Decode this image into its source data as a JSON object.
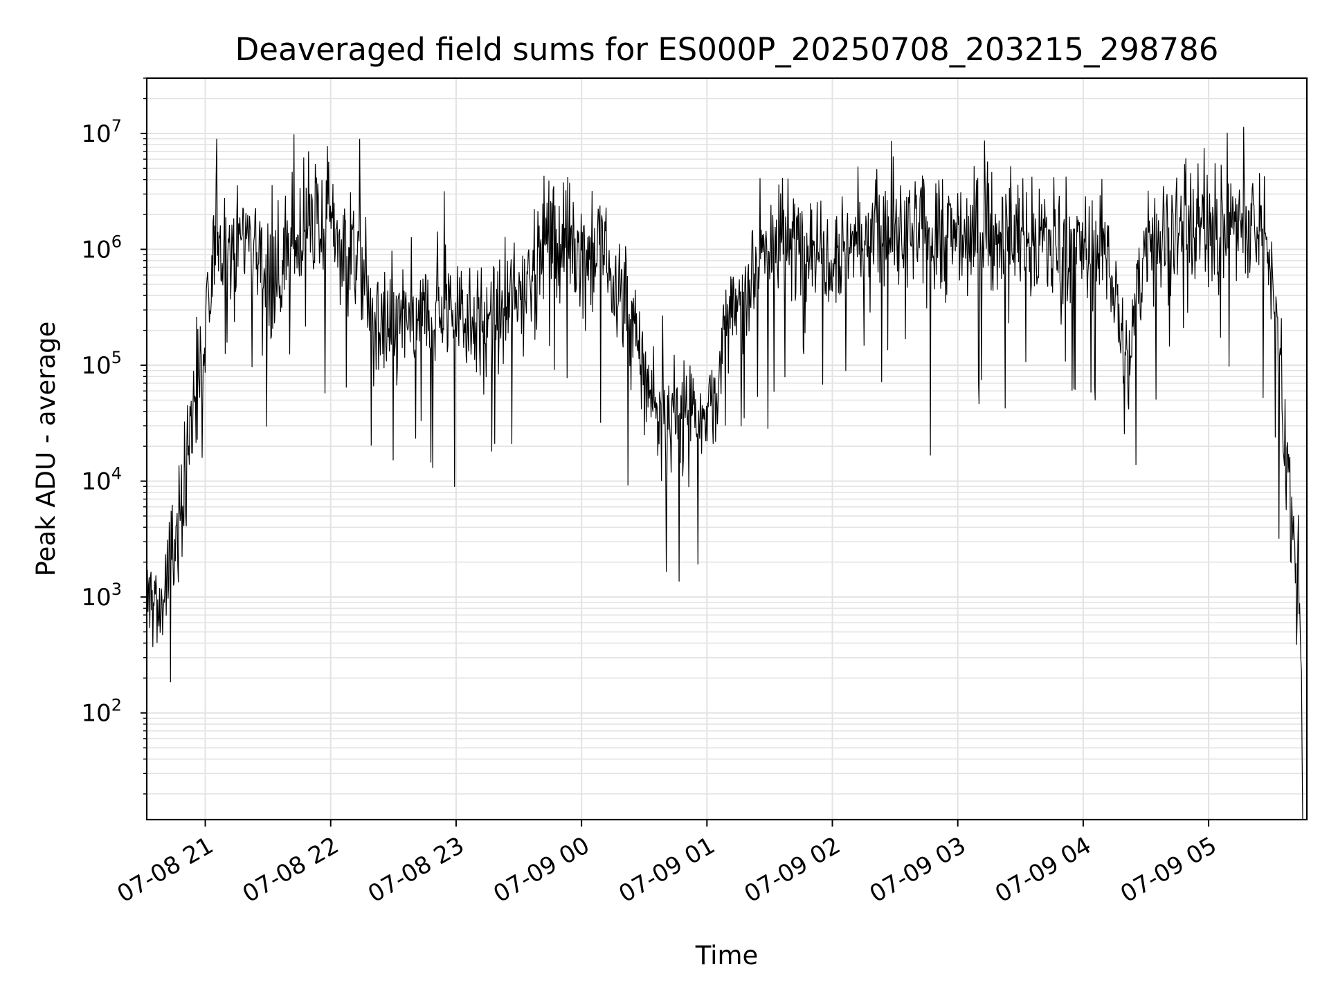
{
  "chart_data": {
    "type": "line",
    "title": "Deaveraged field sums for ES000P_20250708_203215_298786",
    "xlabel": "Time",
    "ylabel": "Peak ADU - average",
    "yscale": "log",
    "grid": true,
    "legend": "none",
    "xlim": [
      "07-08 20:32",
      "07-09 05:47"
    ],
    "ylim": [
      12,
      30000000
    ],
    "x_ticks": [
      "07-08 21",
      "07-08 22",
      "07-08 23",
      "07-09 00",
      "07-09 01",
      "07-09 02",
      "07-09 03",
      "07-09 04",
      "07-09 05"
    ],
    "y_ticks": [
      {
        "value": 100,
        "base": "10",
        "exp": "2"
      },
      {
        "value": 1000,
        "base": "10",
        "exp": "3"
      },
      {
        "value": 10000,
        "base": "10",
        "exp": "4"
      },
      {
        "value": 100000,
        "base": "10",
        "exp": "5"
      },
      {
        "value": 1000000,
        "base": "10",
        "exp": "6"
      },
      {
        "value": 10000000,
        "base": "10",
        "exp": "7"
      }
    ],
    "line_color": "#000000",
    "series": [
      {
        "x": [
          "07-08 20:32",
          "07-08 20:35",
          "07-08 20:38",
          "07-08 20:41",
          "07-08 20:44",
          "07-08 20:47",
          "07-08 20:50",
          "07-08 20:53",
          "07-08 20:56",
          "07-08 20:59",
          "07-08 21:02",
          "07-08 21:05",
          "07-08 21:10",
          "07-08 21:15",
          "07-08 21:20",
          "07-08 21:25",
          "07-08 21:30",
          "07-08 21:35",
          "07-08 21:40",
          "07-08 21:45",
          "07-08 21:50",
          "07-08 21:55",
          "07-08 22:00",
          "07-08 22:05",
          "07-08 22:10",
          "07-08 22:15",
          "07-08 22:20",
          "07-08 22:25",
          "07-08 22:30",
          "07-08 22:35",
          "07-08 22:40",
          "07-08 22:45",
          "07-08 22:50",
          "07-08 22:55",
          "07-08 23:00",
          "07-08 23:05",
          "07-08 23:10",
          "07-08 23:15",
          "07-08 23:20",
          "07-08 23:25",
          "07-08 23:30",
          "07-08 23:35",
          "07-08 23:40",
          "07-08 23:45",
          "07-08 23:50",
          "07-08 23:55",
          "07-09 00:00",
          "07-09 00:05",
          "07-09 00:10",
          "07-09 00:15",
          "07-09 00:20",
          "07-09 00:25",
          "07-09 00:30",
          "07-09 00:35",
          "07-09 00:40",
          "07-09 00:45",
          "07-09 00:50",
          "07-09 00:55",
          "07-09 01:00",
          "07-09 01:05",
          "07-09 01:10",
          "07-09 01:15",
          "07-09 01:20",
          "07-09 01:25",
          "07-09 01:30",
          "07-09 01:35",
          "07-09 01:40",
          "07-09 01:45",
          "07-09 01:50",
          "07-09 01:55",
          "07-09 02:00",
          "07-09 02:10",
          "07-09 02:20",
          "07-09 02:30",
          "07-09 02:40",
          "07-09 02:50",
          "07-09 03:00",
          "07-09 03:10",
          "07-09 03:20",
          "07-09 03:30",
          "07-09 03:40",
          "07-09 03:50",
          "07-09 04:00",
          "07-09 04:10",
          "07-09 04:15",
          "07-09 04:18",
          "07-09 04:22",
          "07-09 04:25",
          "07-09 04:30",
          "07-09 04:40",
          "07-09 04:50",
          "07-09 05:00",
          "07-09 05:10",
          "07-09 05:20",
          "07-09 05:30",
          "07-09 05:33",
          "07-09 05:36",
          "07-09 05:39",
          "07-09 05:42",
          "07-09 05:44",
          "07-09 05:45"
        ],
        "y": [
          900,
          1000,
          700,
          1200,
          2000,
          4000,
          8000,
          30000,
          80000,
          100000,
          300000,
          1500000,
          1000000,
          1200000,
          1500000,
          1000000,
          500000,
          600000,
          1000000,
          1200000,
          1500000,
          1800000,
          1500000,
          1200000,
          1000000,
          800000,
          200000,
          200000,
          220000,
          250000,
          200000,
          250000,
          300000,
          350000,
          300000,
          300000,
          250000,
          200000,
          250000,
          300000,
          400000,
          600000,
          1000000,
          1500000,
          1200000,
          1000000,
          1000000,
          800000,
          1000000,
          500000,
          400000,
          200000,
          80000,
          50000,
          30000,
          30000,
          40000,
          50000,
          40000,
          60000,
          200000,
          300000,
          600000,
          900000,
          1000000,
          1200000,
          1100000,
          1200000,
          1200000,
          1100000,
          1000000,
          1200000,
          1300000,
          1200000,
          1300000,
          1300000,
          1300000,
          1400000,
          1300000,
          1300000,
          1200000,
          1100000,
          1000000,
          1000000,
          600000,
          150000,
          60000,
          300000,
          1200000,
          1400000,
          1600000,
          1600000,
          1800000,
          1500000,
          1000000,
          200000,
          30000,
          5000,
          2000,
          700,
          20
        ]
      }
    ]
  }
}
